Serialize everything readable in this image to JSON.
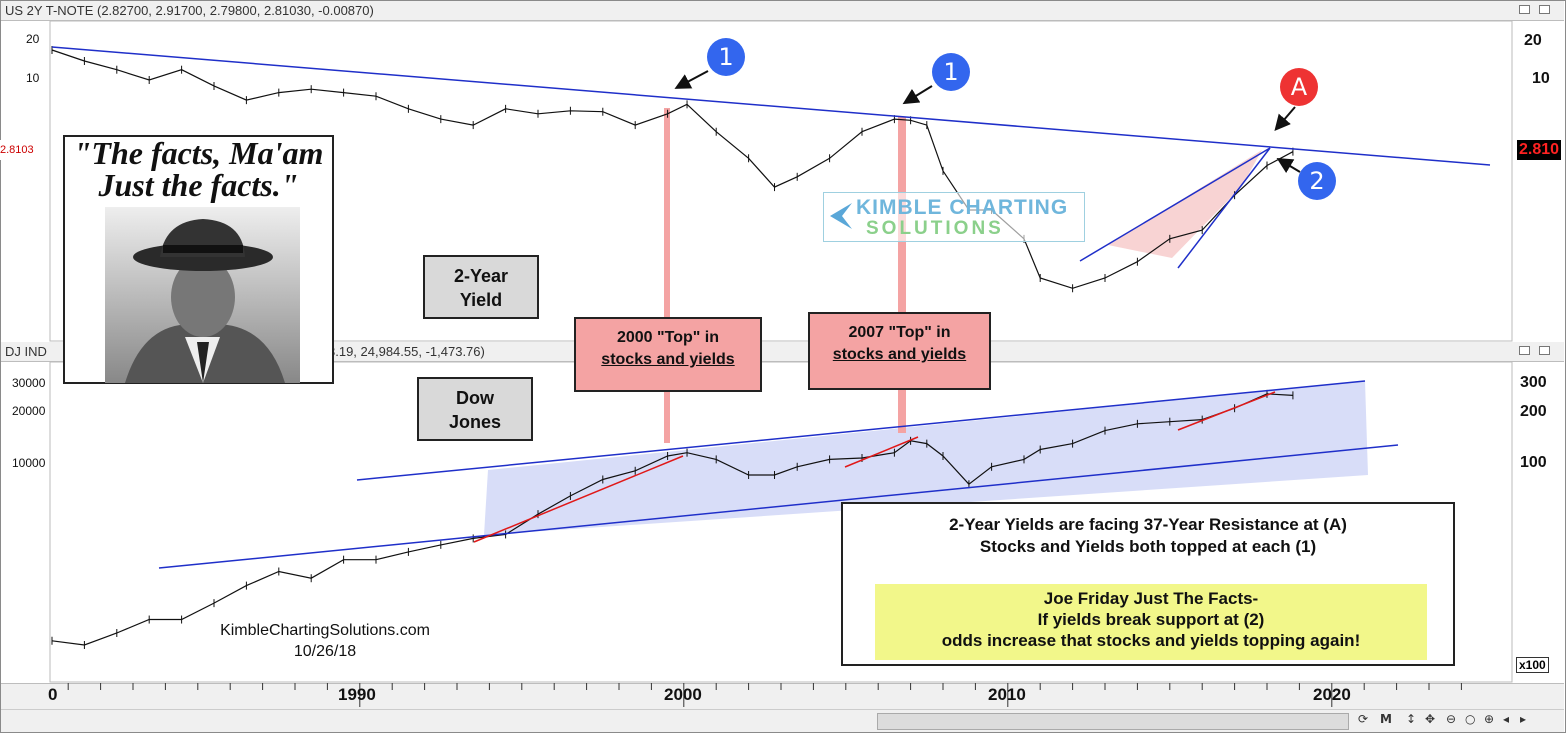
{
  "top_panel": {
    "title": "US 2Y T-NOTE (2.82700, 2.91700, 2.79800, 2.81030, -0.00870)",
    "price_left": "2.8103",
    "price_right": "2.810",
    "y_ticks_left": [
      "20",
      "10"
    ],
    "y_ticks_right": [
      "20",
      "10"
    ]
  },
  "bottom_panel": {
    "title_left": "DJ IND",
    "title_right": "3.19, 24,984.55, -1,473.76)",
    "y_ticks_left": [
      "30000",
      "20000",
      "10000"
    ],
    "y_ticks_right": [
      "300",
      "200",
      "100"
    ],
    "scale": "x100"
  },
  "quote_text": "\"The facts, Ma'am Just the facts.\"",
  "labels": {
    "yield_line1": "2-Year",
    "yield_line2": "Yield",
    "dow_line1": "Dow",
    "dow_line2": "Jones",
    "top2000_line1": "2000 \"Top\" in",
    "top2000_line2": "stocks and yields",
    "top2007_line1": "2007 \"Top\" in",
    "top2007_line2": "stocks and yields",
    "badge1": "1",
    "badge2": "2",
    "badgeA": "A"
  },
  "info": {
    "line1": "2-Year Yields are facing 37-Year Resistance at (A)",
    "line2": "Stocks and Yields both topped at each (1)",
    "yellow1": "Joe Friday Just The Facts-",
    "yellow2": "If yields break support at (2)",
    "yellow3": "odds increase that stocks and yields topping again!"
  },
  "logo": {
    "line1": "KIMBLE CHARTING",
    "line2": "SOLUTIONS"
  },
  "credit": {
    "site": "KimbleChartingSolutions.com",
    "date": "10/26/18"
  },
  "x_axis": [
    "0",
    "1990",
    "2000",
    "2010",
    "2020"
  ],
  "colors": {
    "trend": "#1f2fc9",
    "red": "#e01818",
    "pink": "#f4a3a3",
    "badge_blue": "#3366ee",
    "badge_red": "#ee3333",
    "channel": "#c8cff5"
  },
  "chart_data": [
    {
      "type": "line",
      "title": "US 2Y T-NOTE (2.82700, 2.91700, 2.79800, 2.81030, -0.00870)",
      "x": [
        1980.5,
        1981.5,
        1982.5,
        1983.5,
        1984.5,
        1985.5,
        1986.5,
        1987.5,
        1988.5,
        1989.5,
        1990.5,
        1991.5,
        1992.5,
        1993.5,
        1994.5,
        1995.5,
        1996.5,
        1997.5,
        1998.5,
        1999.5,
        2000.1,
        2001,
        2002,
        2002.8,
        2003.5,
        2004.5,
        2005.5,
        2006.5,
        2007,
        2007.5,
        2008,
        2008.8,
        2009.5,
        2010.5,
        2011,
        2012,
        2013,
        2014,
        2015,
        2016,
        2017,
        2018,
        2018.8
      ],
      "values": [
        17,
        14,
        12,
        10,
        12,
        9,
        7,
        8,
        8.5,
        8,
        7.5,
        6,
        5,
        4.5,
        6,
        5.5,
        5.8,
        5.7,
        4.5,
        5.5,
        6.5,
        4,
        2.5,
        1.5,
        1.8,
        2.5,
        4.0,
        5.0,
        4.9,
        4.5,
        2.0,
        1.0,
        1.0,
        0.6,
        0.3,
        0.25,
        0.3,
        0.4,
        0.6,
        0.7,
        1.3,
        2.2,
        2.81
      ],
      "ylabel": "",
      "scale": "log"
    },
    {
      "type": "line",
      "title": "DJ IND",
      "x": [
        1980.5,
        1981.5,
        1982.5,
        1983.5,
        1984.5,
        1985.5,
        1986.5,
        1987.5,
        1988.5,
        1989.5,
        1990.5,
        1991.5,
        1992.5,
        1993.5,
        1994.5,
        1995.5,
        1996.5,
        1997.5,
        1998.5,
        1999.5,
        2000.1,
        2001,
        2002,
        2002.8,
        2003.5,
        2004.5,
        2005.5,
        2006.5,
        2007,
        2007.5,
        2008,
        2008.8,
        2009.5,
        2010.5,
        2011,
        2012,
        2013,
        2014,
        2015,
        2016,
        2017,
        2018,
        2018.8
      ],
      "values": [
        900,
        850,
        1000,
        1200,
        1200,
        1500,
        1900,
        2300,
        2100,
        2700,
        2700,
        3000,
        3300,
        3600,
        3800,
        5000,
        6400,
        8000,
        9000,
        11000,
        11500,
        10500,
        8500,
        8500,
        9500,
        10500,
        10700,
        11500,
        13500,
        13000,
        11000,
        7500,
        9500,
        10500,
        12000,
        13000,
        15500,
        17000,
        17500,
        18000,
        21000,
        25500,
        25000
      ],
      "ylabel": "",
      "scale": "log"
    }
  ]
}
